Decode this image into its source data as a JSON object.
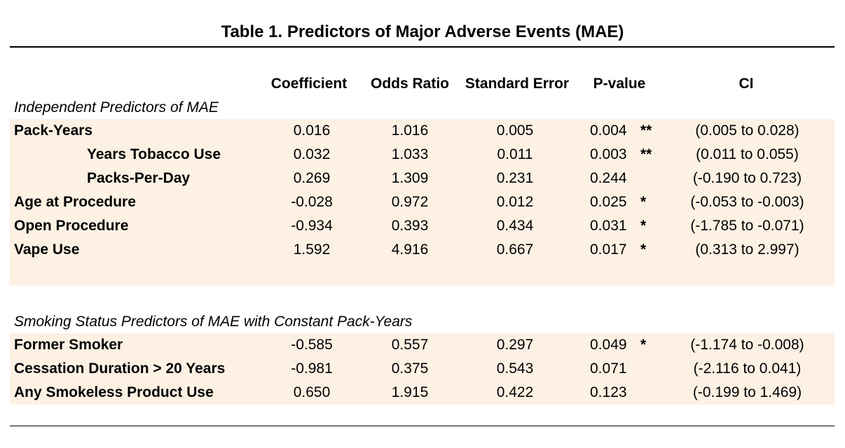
{
  "title": "Table 1.  Predictors of Major Adverse Events (MAE)",
  "headers": {
    "coefficient": "Coefficient",
    "odds_ratio": "Odds Ratio",
    "standard_error": "Standard Error",
    "p_value": "P-value",
    "ci": "CI"
  },
  "section1": {
    "label": "Independent Predictors of MAE",
    "rows": [
      {
        "label": "Pack-Years",
        "coef": "0.016",
        "or": "1.016",
        "se": "0.005",
        "p": "0.004",
        "sig": "**",
        "ci": "(0.005 to 0.028)"
      },
      {
        "label": "Years Tobacco Use",
        "coef": "0.032",
        "or": "1.033",
        "se": "0.011",
        "p": "0.003",
        "sig": "**",
        "ci": "(0.011 to 0.055)"
      },
      {
        "label": "Packs-Per-Day",
        "coef": "0.269",
        "or": "1.309",
        "se": "0.231",
        "p": "0.244",
        "sig": "",
        "ci": "(-0.190 to 0.723)"
      },
      {
        "label": "Age at Procedure",
        "coef": "-0.028",
        "or": "0.972",
        "se": "0.012",
        "p": "0.025",
        "sig": "*",
        "ci": "(-0.053 to -0.003)"
      },
      {
        "label": "Open Procedure",
        "coef": "-0.934",
        "or": "0.393",
        "se": "0.434",
        "p": "0.031",
        "sig": "*",
        "ci": "(-1.785 to -0.071)"
      },
      {
        "label": "Vape Use",
        "coef": "1.592",
        "or": "4.916",
        "se": "0.667",
        "p": "0.017",
        "sig": "*",
        "ci": "(0.313 to 2.997)"
      }
    ]
  },
  "section2": {
    "label": "Smoking Status Predictors of MAE with Constant Pack-Years",
    "rows": [
      {
        "label": "Former Smoker",
        "coef": "-0.585",
        "or": "0.557",
        "se": "0.297",
        "p": "0.049",
        "sig": "*",
        "ci": "(-1.174 to -0.008)"
      },
      {
        "label": "Cessation Duration > 20 Years",
        "coef": "-0.981",
        "or": "0.375",
        "se": "0.543",
        "p": "0.071",
        "sig": "",
        "ci": "(-2.116 to 0.041)"
      },
      {
        "label": "Any Smokeless Product Use",
        "coef": "0.650",
        "or": "1.915",
        "se": "0.422",
        "p": "0.123",
        "sig": "",
        "ci": "(-0.199 to 1.469)"
      }
    ]
  }
}
